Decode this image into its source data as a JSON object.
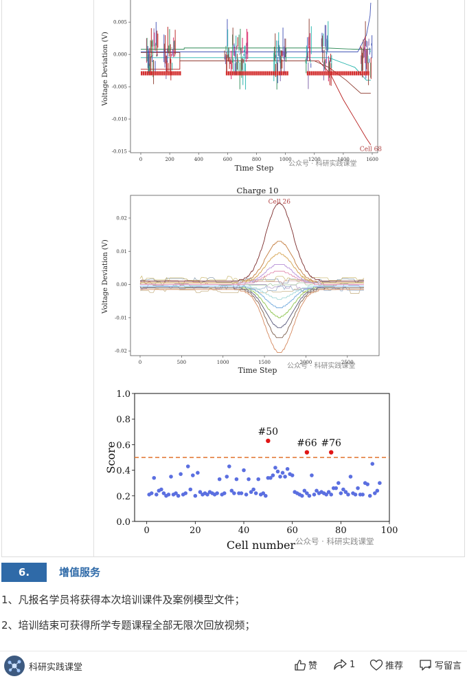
{
  "chart_data": [
    {
      "type": "line",
      "title": "",
      "xlabel": "Time Step",
      "ylabel": "Voltage Deviation (V)",
      "x_ticks": [
        "0",
        "200",
        "400",
        "600",
        "800",
        "1000",
        "1200",
        "1400",
        "1600"
      ],
      "y_ticks": [
        "0.005",
        "0.000",
        "-0.005",
        "-0.010",
        "-0.015"
      ],
      "xlim": [
        0,
        1600
      ],
      "ylim": [
        -0.015,
        0.008
      ],
      "annotation": "Cell 68",
      "watermark": "公众号 · 科研实践课堂",
      "series": [
        {
          "color": "#b71c1c",
          "values": [
            [
              0,
              -0.0023
            ],
            [
              270,
              -0.0023
            ],
            [
              270,
              -0.001
            ],
            [
              1230,
              -0.001
            ],
            [
              1310,
              -0.003
            ],
            [
              1400,
              -0.007
            ],
            [
              1480,
              -0.01
            ],
            [
              1560,
              -0.013
            ],
            [
              1590,
              -0.014
            ]
          ]
        },
        {
          "color": "#8d3b2f",
          "values": [
            [
              0,
              0.0003
            ],
            [
              270,
              0.0003
            ],
            [
              270,
              -0.001
            ],
            [
              1200,
              -0.001
            ],
            [
              1300,
              -0.002
            ],
            [
              1420,
              -0.004
            ],
            [
              1520,
              -0.006
            ],
            [
              1590,
              -0.006
            ]
          ]
        },
        {
          "color": "#2e8b57",
          "values": [
            [
              0,
              0.0008
            ],
            [
              300,
              0.0008
            ],
            [
              300,
              0.001
            ],
            [
              1280,
              0.001
            ],
            [
              1480,
              0.0008
            ],
            [
              1590,
              0.0008
            ]
          ]
        },
        {
          "color": "#20b2aa",
          "values": [
            [
              0,
              -0.0005
            ],
            [
              1300,
              -0.0005
            ],
            [
              1480,
              -0.002
            ],
            [
              1560,
              -0.004
            ],
            [
              1590,
              -0.004
            ]
          ]
        },
        {
          "color": "#3f51b5",
          "values": [
            [
              0,
              0.0004
            ],
            [
              1500,
              0.0004
            ],
            [
              1560,
              0.003
            ],
            [
              1585,
              0.006
            ],
            [
              1590,
              0.008
            ]
          ]
        }
      ]
    },
    {
      "type": "line",
      "title": "Charge 10",
      "xlabel": "Time Step",
      "ylabel": "Voltage Deviation (V)",
      "x_ticks": [
        "0",
        "500",
        "1000",
        "1500",
        "2000",
        "2500"
      ],
      "y_ticks": [
        "0.02",
        "0.01",
        "0.00",
        "-0.01",
        "-0.02"
      ],
      "xlim": [
        0,
        2800
      ],
      "ylim": [
        -0.021,
        0.026
      ],
      "annotation": "Cell 26",
      "watermark": "公众号 · 科研实践课堂",
      "bump_series": [
        {
          "color": "#7a2a2a",
          "amp": 0.0235,
          "base": 0.001
        },
        {
          "color": "#c27a3a",
          "amp": 0.0125,
          "base": 0.0005
        },
        {
          "color": "#d4a04a",
          "amp": 0.009,
          "base": 0.0003
        },
        {
          "color": "#b58fd6",
          "amp": 0.006,
          "base": 0.0002
        },
        {
          "color": "#e28fb0",
          "amp": 0.004,
          "base": 0.0001
        },
        {
          "color": "#9fd6d6",
          "amp": -0.004,
          "base": -0.0003
        },
        {
          "color": "#6fa8dc",
          "amp": -0.0065,
          "base": -0.0005
        },
        {
          "color": "#8bc34a",
          "amp": -0.009,
          "base": -0.0008
        },
        {
          "color": "#555577",
          "amp": -0.012,
          "base": -0.001
        },
        {
          "color": "#7a5c4a",
          "amp": -0.015,
          "base": -0.0012
        },
        {
          "color": "#d4865a",
          "amp": -0.019,
          "base": -0.0015
        }
      ]
    },
    {
      "type": "scatter",
      "title": "",
      "xlabel": "Cell number",
      "ylabel": "Score",
      "xlim": [
        -5,
        100
      ],
      "ylim": [
        0.0,
        1.0
      ],
      "x_ticks": [
        "0",
        "20",
        "40",
        "60",
        "80",
        "100"
      ],
      "y_ticks": [
        "0.0",
        "0.2",
        "0.4",
        "0.6",
        "0.8",
        "1.0"
      ],
      "threshold": 0.5,
      "watermark": "公众号 · 科研实践课堂",
      "normal_points": [
        [
          1,
          0.21
        ],
        [
          2,
          0.22
        ],
        [
          3,
          0.34
        ],
        [
          4,
          0.21
        ],
        [
          5,
          0.24
        ],
        [
          6,
          0.25
        ],
        [
          7,
          0.22
        ],
        [
          8,
          0.2
        ],
        [
          9,
          0.21
        ],
        [
          10,
          0.35
        ],
        [
          11,
          0.21
        ],
        [
          12,
          0.22
        ],
        [
          13,
          0.2
        ],
        [
          14,
          0.37
        ],
        [
          15,
          0.21
        ],
        [
          16,
          0.22
        ],
        [
          17,
          0.43
        ],
        [
          18,
          0.25
        ],
        [
          19,
          0.36
        ],
        [
          20,
          0.2
        ],
        [
          21,
          0.38
        ],
        [
          22,
          0.23
        ],
        [
          23,
          0.21
        ],
        [
          24,
          0.22
        ],
        [
          25,
          0.21
        ],
        [
          26,
          0.23
        ],
        [
          27,
          0.22
        ],
        [
          28,
          0.21
        ],
        [
          29,
          0.22
        ],
        [
          30,
          0.33
        ],
        [
          31,
          0.21
        ],
        [
          32,
          0.22
        ],
        [
          33,
          0.35
        ],
        [
          34,
          0.43
        ],
        [
          35,
          0.24
        ],
        [
          36,
          0.22
        ],
        [
          37,
          0.33
        ],
        [
          38,
          0.22
        ],
        [
          39,
          0.22
        ],
        [
          40,
          0.4
        ],
        [
          41,
          0.21
        ],
        [
          42,
          0.33
        ],
        [
          43,
          0.23
        ],
        [
          44,
          0.25
        ],
        [
          45,
          0.22
        ],
        [
          46,
          0.33
        ],
        [
          47,
          0.21
        ],
        [
          48,
          0.22
        ],
        [
          49,
          0.2
        ],
        [
          50,
          0.34
        ],
        [
          51,
          0.34
        ],
        [
          52,
          0.36
        ],
        [
          53,
          0.42
        ],
        [
          54,
          0.39
        ],
        [
          55,
          0.35
        ],
        [
          56,
          0.38
        ],
        [
          57,
          0.35
        ],
        [
          58,
          0.41
        ],
        [
          59,
          0.37
        ],
        [
          60,
          0.36
        ],
        [
          61,
          0.23
        ],
        [
          62,
          0.22
        ],
        [
          63,
          0.21
        ],
        [
          64,
          0.2
        ],
        [
          65,
          0.24
        ],
        [
          66,
          0.22
        ],
        [
          67,
          0.2
        ],
        [
          68,
          0.36
        ],
        [
          69,
          0.21
        ],
        [
          70,
          0.24
        ],
        [
          71,
          0.22
        ],
        [
          72,
          0.23
        ],
        [
          73,
          0.22
        ],
        [
          74,
          0.21
        ],
        [
          75,
          0.23
        ],
        [
          76,
          0.21
        ],
        [
          77,
          0.26
        ],
        [
          78,
          0.26
        ],
        [
          79,
          0.3
        ],
        [
          80,
          0.22
        ],
        [
          81,
          0.25
        ],
        [
          82,
          0.23
        ],
        [
          83,
          0.21
        ],
        [
          84,
          0.35
        ],
        [
          85,
          0.22
        ],
        [
          86,
          0.21
        ],
        [
          87,
          0.26
        ],
        [
          88,
          0.21
        ],
        [
          89,
          0.21
        ],
        [
          90,
          0.3
        ],
        [
          91,
          0.29
        ],
        [
          92,
          0.2
        ],
        [
          93,
          0.45
        ],
        [
          94,
          0.22
        ],
        [
          95,
          0.24
        ],
        [
          96,
          0.3
        ]
      ],
      "anomalies": [
        {
          "label": "#50",
          "x": 50,
          "y": 0.63
        },
        {
          "label": "#66",
          "x": 66,
          "y": 0.54
        },
        {
          "label": "#76",
          "x": 76,
          "y": 0.54
        }
      ],
      "colors": {
        "normal": "#5b6fe0",
        "anomaly": "#e01515",
        "threshold": "#e0702a"
      }
    }
  ],
  "section": {
    "number": "6.",
    "title": "增值服务"
  },
  "paragraphs": [
    "1、凡报名学员将获得本次培训课件及案例模型文件；",
    "2、培训结束可获得所学专题课程全部无限次回放视频；"
  ],
  "footer": {
    "account": "科研实践课堂",
    "like": "赞",
    "share_count": "1",
    "recommend": "推荐",
    "comment": "写留言"
  }
}
